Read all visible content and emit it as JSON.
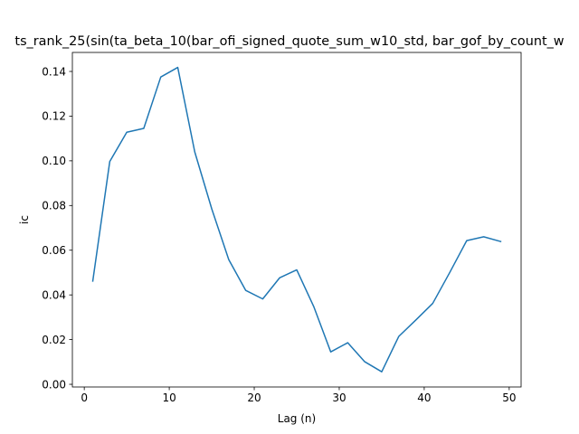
{
  "chart_data": {
    "type": "line",
    "title": "ts_rank_25(sin(ta_beta_10(bar_ofi_signed_quote_sum_w10_std, bar_gof_by_count_w",
    "xlabel": "Lag (n)",
    "ylabel": "ic",
    "xlim": [
      -1.4,
      51.4
    ],
    "ylim": [
      -0.0012,
      0.1485
    ],
    "xticks": [
      0,
      10,
      20,
      30,
      40,
      50
    ],
    "yticks": [
      0.0,
      0.02,
      0.04,
      0.06,
      0.08,
      0.1,
      0.12,
      0.14
    ],
    "xtick_labels": [
      "0",
      "10",
      "20",
      "30",
      "40",
      "50"
    ],
    "ytick_labels": [
      "0.00",
      "0.02",
      "0.04",
      "0.06",
      "0.08",
      "0.10",
      "0.12",
      "0.14"
    ],
    "grid": false,
    "legend": "none",
    "series": [
      {
        "color": "#1f77b4",
        "x": [
          1,
          3,
          5,
          7,
          9,
          11,
          13,
          15,
          17,
          19,
          21,
          23,
          25,
          27,
          29,
          31,
          33,
          35,
          37,
          39,
          41,
          43,
          45,
          47,
          49
        ],
        "y": [
          0.0462,
          0.0997,
          0.1128,
          0.1145,
          0.1375,
          0.1418,
          0.104,
          0.0785,
          0.0558,
          0.042,
          0.0382,
          0.0477,
          0.0512,
          0.0348,
          0.0145,
          0.0186,
          0.0101,
          0.0056,
          0.0214,
          0.0287,
          0.0362,
          0.05,
          0.0643,
          0.066,
          0.0639
        ]
      }
    ]
  }
}
